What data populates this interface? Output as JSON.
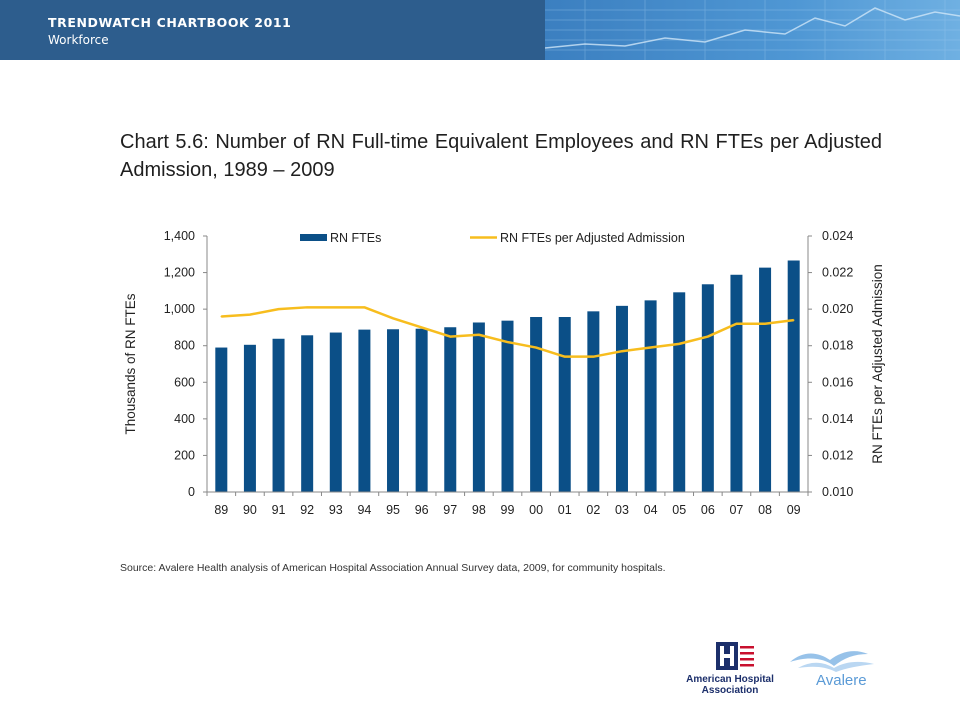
{
  "header": {
    "title": "TRENDWATCH CHARTBOOK 2011",
    "subtitle": "Workforce"
  },
  "chart_title": "Chart 5.6: Number of RN Full-time Equivalent Employees and RN FTEs per Adjusted Admission, 1989 – 2009",
  "source": "Source: Avalere Health analysis of American Hospital Association Annual Survey data, 2009, for community hospitals.",
  "logos": {
    "aha_line1": "American Hospital",
    "aha_line2": "Association",
    "avalere": "Avalere"
  },
  "colors": {
    "bar": "#0b4f87",
    "line": "#f7bd1e",
    "header": "#2d5d8d",
    "axis_text": "#222222"
  },
  "chart_data": {
    "type": "bar",
    "categories": [
      "89",
      "90",
      "91",
      "92",
      "93",
      "94",
      "95",
      "96",
      "97",
      "98",
      "99",
      "00",
      "01",
      "02",
      "03",
      "04",
      "05",
      "06",
      "07",
      "08",
      "09"
    ],
    "series": [
      {
        "name": "RN FTEs",
        "type": "bar",
        "axis": "left",
        "values": [
          790,
          805,
          838,
          857,
          872,
          888,
          890,
          893,
          901,
          927,
          937,
          957,
          957,
          988,
          1018,
          1048,
          1092,
          1136,
          1188,
          1227,
          1266
        ]
      },
      {
        "name": "RN FTEs per Adjusted Admission",
        "type": "line",
        "axis": "right",
        "values": [
          0.0196,
          0.0197,
          0.02,
          0.0201,
          0.0201,
          0.0201,
          0.0195,
          0.019,
          0.0185,
          0.0186,
          0.0182,
          0.0179,
          0.0174,
          0.0174,
          0.0177,
          0.0179,
          0.0181,
          0.0185,
          0.0192,
          0.0192,
          0.0194
        ]
      }
    ],
    "ylabel": "Thousands of RN FTEs",
    "y2label": "RN FTEs per Adjusted Admission",
    "ylim": [
      0,
      1400
    ],
    "y2lim": [
      0.01,
      0.024
    ],
    "yticks": [
      0,
      200,
      400,
      600,
      800,
      1000,
      1200,
      1400
    ],
    "yticklabels": [
      "0",
      "200",
      "400",
      "600",
      "800",
      "1,000",
      "1,200",
      "1,400"
    ],
    "y2ticks": [
      0.01,
      0.012,
      0.014,
      0.016,
      0.018,
      0.02,
      0.022,
      0.024
    ],
    "y2ticklabels": [
      "0.010",
      "0.012",
      "0.014",
      "0.016",
      "0.018",
      "0.020",
      "0.022",
      "0.024"
    ],
    "grid": false,
    "legend_position": "top"
  }
}
